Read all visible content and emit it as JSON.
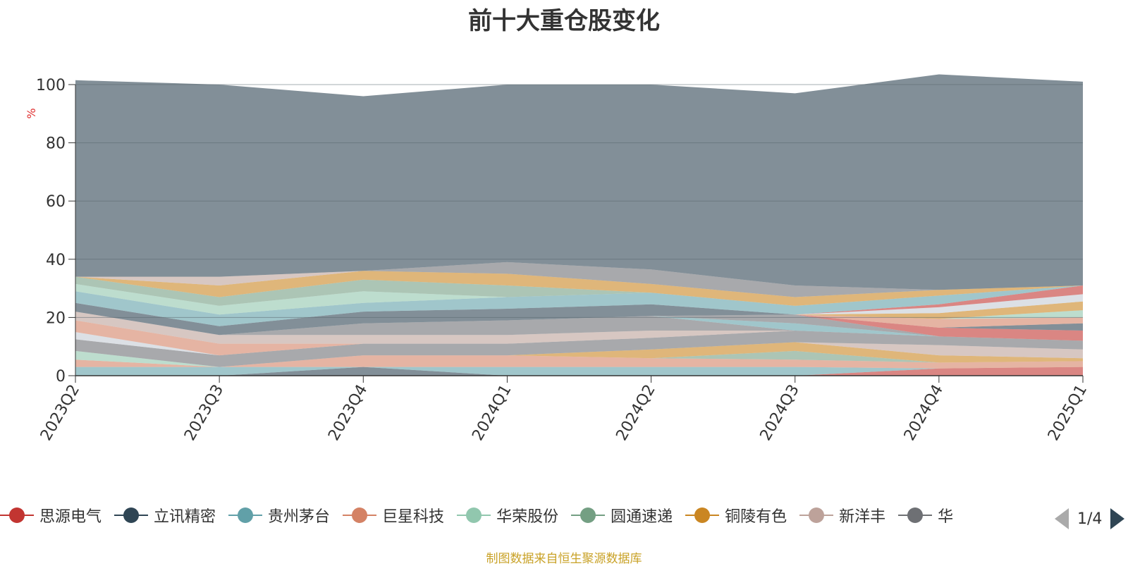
{
  "title": "前十大重仓股变化",
  "source": "制图数据来自恒生聚源数据库",
  "pager": {
    "text": "1/4"
  },
  "chart_data": {
    "type": "area",
    "stacked": true,
    "ylabel": "%",
    "ylim": [
      0,
      100
    ],
    "yticks": [
      "0",
      "20",
      "40",
      "60",
      "80",
      "100"
    ],
    "categories": [
      "2023Q2",
      "2023Q3",
      "2023Q4",
      "2024Q1",
      "2024Q2",
      "2024Q3",
      "2024Q4",
      "2025Q1"
    ],
    "grid": true,
    "legend_position": "bottom",
    "series": [
      {
        "name": "思源电气",
        "color": "#c23531",
        "values": [
          0,
          0,
          0,
          0,
          0,
          0,
          2.5,
          3
        ]
      },
      {
        "name": "立讯精密",
        "color": "#2f4554",
        "values": [
          0,
          0,
          3,
          0,
          0,
          0,
          0,
          0
        ]
      },
      {
        "name": "贵州茅台",
        "color": "#61a0a8",
        "values": [
          3,
          3,
          0,
          3,
          3,
          3,
          0,
          0
        ]
      },
      {
        "name": "巨星科技",
        "color": "#d48265",
        "values": [
          2.5,
          0,
          4,
          4,
          3,
          2.5,
          2,
          2
        ]
      },
      {
        "name": "华荣股份",
        "color": "#91c7ae",
        "values": [
          3,
          0,
          0,
          0,
          0,
          0,
          0,
          0
        ]
      },
      {
        "name": "圆通速递",
        "color": "#749f83",
        "values": [
          0,
          0,
          0,
          0,
          0,
          3,
          0,
          0
        ]
      },
      {
        "name": "铜陵有色",
        "color": "#ca8622",
        "values": [
          0,
          0,
          0,
          0,
          3,
          3,
          2.5,
          1
        ]
      },
      {
        "name": "新洋丰",
        "color": "#bda29a",
        "values": [
          0,
          0,
          0,
          0,
          0,
          0,
          3.5,
          3
        ]
      },
      {
        "name": "华",
        "color": "#6e7074",
        "values": [
          4,
          4,
          4,
          4,
          4,
          4,
          3,
          3
        ]
      },
      {
        "name": "",
        "color": "#c4ccd3",
        "values": [
          2.5,
          0,
          0,
          0,
          0,
          0,
          0,
          0
        ]
      },
      {
        "name": "",
        "color": "#d48265",
        "values": [
          4,
          4,
          0,
          0,
          0,
          0,
          0,
          0
        ]
      },
      {
        "name": "",
        "color": "#bda29a",
        "values": [
          3,
          3,
          3,
          3,
          2.5,
          0,
          0,
          0
        ]
      },
      {
        "name": "",
        "color": "#6e7074",
        "values": [
          0,
          0,
          4,
          5,
          5,
          0,
          0,
          0
        ]
      },
      {
        "name": "",
        "color": "#61a0a8",
        "values": [
          0,
          0,
          0,
          0,
          0,
          2.5,
          0,
          0
        ]
      },
      {
        "name": "",
        "color": "#6e7074",
        "values": [
          0,
          0,
          0,
          0,
          0,
          3,
          0,
          0
        ]
      },
      {
        "name": "",
        "color": "#c23531",
        "values": [
          0,
          0,
          0,
          0,
          0,
          0,
          3,
          3.5
        ]
      },
      {
        "name": "",
        "color": "#2f4554",
        "values": [
          3,
          3,
          4,
          4,
          4,
          0,
          0,
          2.5
        ]
      },
      {
        "name": "",
        "color": "#d48265",
        "values": [
          0,
          0,
          0,
          0,
          0,
          0,
          3,
          2
        ]
      },
      {
        "name": "",
        "color": "#91c7ae",
        "values": [
          0,
          0,
          0,
          0,
          0,
          0,
          0,
          2.5
        ]
      },
      {
        "name": "",
        "color": "#ca8622",
        "values": [
          0,
          0,
          0,
          0,
          0,
          0,
          2,
          3
        ]
      },
      {
        "name": "",
        "color": "#c4ccd3",
        "values": [
          0,
          0,
          0,
          0,
          0,
          0,
          2,
          2.5
        ]
      },
      {
        "name": "",
        "color": "#c23531",
        "values": [
          0,
          0,
          0,
          0,
          0,
          0,
          1,
          3
        ]
      },
      {
        "name": "",
        "color": "#61a0a8",
        "values": [
          4,
          4,
          3,
          4,
          4,
          3,
          3,
          0
        ]
      },
      {
        "name": "",
        "color": "#91c7ae",
        "values": [
          2.5,
          3,
          4,
          0,
          0,
          0,
          0,
          0
        ]
      },
      {
        "name": "",
        "color": "#749f83",
        "values": [
          2.5,
          3,
          4,
          4,
          0,
          0,
          0,
          0
        ]
      },
      {
        "name": "",
        "color": "#ca8622",
        "values": [
          0,
          4,
          3,
          4,
          3,
          3,
          2,
          0
        ]
      },
      {
        "name": "",
        "color": "#bda29a",
        "values": [
          0,
          3,
          0,
          0,
          0,
          0,
          0,
          0
        ]
      },
      {
        "name": "",
        "color": "#6e7074",
        "values": [
          0,
          0,
          0,
          4,
          5,
          4,
          0,
          0
        ]
      },
      {
        "name": "",
        "color": "#2f4554",
        "values": [
          67.5,
          66,
          60,
          61,
          63.5,
          66,
          74,
          70
        ]
      }
    ]
  }
}
